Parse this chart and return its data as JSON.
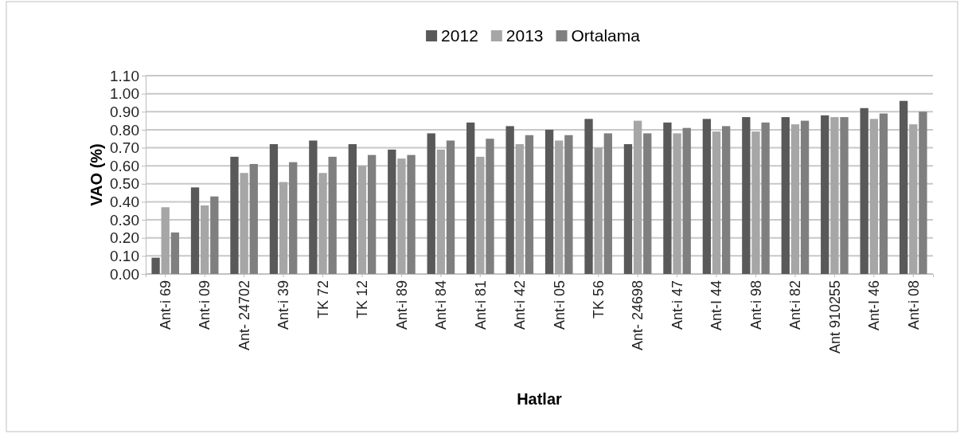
{
  "chart_data": {
    "type": "bar",
    "xlabel": "Hatlar",
    "ylabel": "VAO (%)",
    "categories": [
      "Ant-i 69",
      "Ant-i 09",
      "Ant- 24702",
      "Ant-i 39",
      "TK 72",
      "TK 12",
      "Ant-i 89",
      "Ant-i 84",
      "Ant-i 81",
      "Ant-i 42",
      "Ant-i 05",
      "TK 56",
      "Ant- 24698",
      "Ant-i 47",
      "Ant-I 44",
      "Ant-i 98",
      "Ant-i 82",
      "Ant 910255",
      "Ant-I 46",
      "Ant-i 08"
    ],
    "series": [
      {
        "name": "2012",
        "color": "#595959",
        "values": [
          0.09,
          0.48,
          0.65,
          0.72,
          0.74,
          0.72,
          0.69,
          0.78,
          0.84,
          0.82,
          0.8,
          0.86,
          0.72,
          0.84,
          0.86,
          0.87,
          0.87,
          0.88,
          0.92,
          0.96
        ]
      },
      {
        "name": "2013",
        "color": "#a6a6a6",
        "values": [
          0.37,
          0.38,
          0.56,
          0.51,
          0.56,
          0.6,
          0.64,
          0.69,
          0.65,
          0.72,
          0.74,
          0.7,
          0.85,
          0.78,
          0.79,
          0.79,
          0.83,
          0.87,
          0.86,
          0.83
        ]
      },
      {
        "name": "Ortalama",
        "color": "#7f7f7f",
        "values": [
          0.23,
          0.43,
          0.61,
          0.62,
          0.65,
          0.66,
          0.66,
          0.74,
          0.75,
          0.77,
          0.77,
          0.78,
          0.78,
          0.81,
          0.82,
          0.84,
          0.85,
          0.87,
          0.89,
          0.9
        ]
      }
    ],
    "ylim": [
      0,
      1.1
    ],
    "yticks": [
      {
        "value": 0,
        "label": "0.00"
      },
      {
        "value": 0.1,
        "label": "0.10"
      },
      {
        "value": 0.2,
        "label": "0.20"
      },
      {
        "value": 0.3,
        "label": "0.30"
      },
      {
        "value": 0.4,
        "label": "0.40"
      },
      {
        "value": 0.5,
        "label": "0.50"
      },
      {
        "value": 0.6,
        "label": "0.60"
      },
      {
        "value": 0.7,
        "label": "0.70"
      },
      {
        "value": 0.8,
        "label": "0.80"
      },
      {
        "value": 0.9,
        "label": "0.90"
      },
      {
        "value": 1.0,
        "label": "1.00"
      },
      {
        "value": 1.1,
        "label": "1.10"
      }
    ],
    "grid": "y",
    "legend": "top"
  }
}
